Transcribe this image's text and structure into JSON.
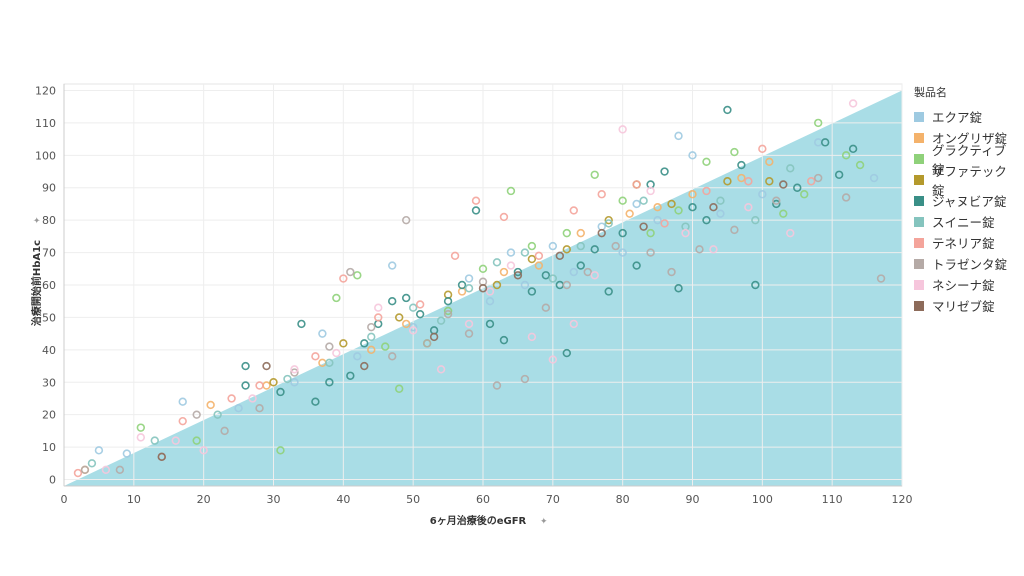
{
  "chart_data": {
    "type": "scatter",
    "xlabel": "6ヶ月治療後のeGFR",
    "ylabel": "治療開始前HbA1c",
    "xlim": [
      0,
      120
    ],
    "ylim": [
      -2,
      122
    ],
    "xticks": [
      0,
      10,
      20,
      30,
      40,
      50,
      60,
      70,
      80,
      90,
      100,
      110,
      120
    ],
    "yticks": [
      0,
      10,
      20,
      30,
      40,
      50,
      60,
      70,
      80,
      90,
      100,
      110,
      120
    ],
    "grid": true,
    "marker": "hollow-circle",
    "legend_title": "製品名",
    "legend_position": "right",
    "shaded_region": {
      "color": "#a9dde6",
      "vertices": [
        [
          0,
          -2
        ],
        [
          120,
          120
        ],
        [
          120,
          -2
        ]
      ]
    },
    "series": [
      {
        "name": "エクア錠",
        "color": "#9ecae1",
        "points": [
          [
            5,
            9
          ],
          [
            9,
            8
          ],
          [
            17,
            24
          ],
          [
            25,
            22
          ],
          [
            33,
            30
          ],
          [
            37,
            45
          ],
          [
            42,
            38
          ],
          [
            47,
            66
          ],
          [
            50,
            47
          ],
          [
            55,
            52
          ],
          [
            58,
            62
          ],
          [
            61,
            55
          ],
          [
            64,
            70
          ],
          [
            66,
            60
          ],
          [
            70,
            72
          ],
          [
            73,
            64
          ],
          [
            77,
            78
          ],
          [
            80,
            70
          ],
          [
            82,
            85
          ],
          [
            85,
            80
          ],
          [
            88,
            106
          ],
          [
            90,
            100
          ],
          [
            94,
            82
          ],
          [
            100,
            88
          ],
          [
            108,
            104
          ],
          [
            116,
            93
          ]
        ]
      },
      {
        "name": "オングリザ錠",
        "color": "#f4b26b",
        "points": [
          [
            3,
            3
          ],
          [
            21,
            23
          ],
          [
            29,
            29
          ],
          [
            37,
            36
          ],
          [
            44,
            40
          ],
          [
            49,
            48
          ],
          [
            57,
            58
          ],
          [
            63,
            64
          ],
          [
            68,
            66
          ],
          [
            74,
            76
          ],
          [
            81,
            82
          ],
          [
            85,
            84
          ],
          [
            90,
            88
          ],
          [
            97,
            93
          ],
          [
            101,
            98
          ]
        ]
      },
      {
        "name": "グラクティブ錠",
        "color": "#8fd17a",
        "points": [
          [
            11,
            16
          ],
          [
            19,
            12
          ],
          [
            31,
            9
          ],
          [
            39,
            56
          ],
          [
            42,
            63
          ],
          [
            46,
            41
          ],
          [
            48,
            28
          ],
          [
            52,
            42
          ],
          [
            55,
            52
          ],
          [
            60,
            65
          ],
          [
            64,
            89
          ],
          [
            67,
            72
          ],
          [
            72,
            76
          ],
          [
            76,
            94
          ],
          [
            80,
            86
          ],
          [
            84,
            76
          ],
          [
            88,
            83
          ],
          [
            92,
            98
          ],
          [
            96,
            101
          ],
          [
            103,
            82
          ],
          [
            106,
            88
          ],
          [
            108,
            110
          ],
          [
            112,
            100
          ],
          [
            114,
            97
          ]
        ]
      },
      {
        "name": "ザファテック錠",
        "color": "#b4992c",
        "points": [
          [
            30,
            30
          ],
          [
            40,
            42
          ],
          [
            48,
            50
          ],
          [
            55,
            57
          ],
          [
            62,
            60
          ],
          [
            67,
            68
          ],
          [
            72,
            71
          ],
          [
            78,
            80
          ],
          [
            82,
            91
          ],
          [
            87,
            85
          ],
          [
            95,
            92
          ],
          [
            101,
            92
          ]
        ]
      },
      {
        "name": "ジャヌビア錠",
        "color": "#3a8f87",
        "points": [
          [
            26,
            35
          ],
          [
            26,
            29
          ],
          [
            31,
            27
          ],
          [
            34,
            48
          ],
          [
            36,
            24
          ],
          [
            38,
            30
          ],
          [
            41,
            32
          ],
          [
            43,
            42
          ],
          [
            45,
            48
          ],
          [
            47,
            55
          ],
          [
            49,
            56
          ],
          [
            51,
            51
          ],
          [
            53,
            46
          ],
          [
            55,
            55
          ],
          [
            57,
            60
          ],
          [
            59,
            83
          ],
          [
            61,
            48
          ],
          [
            63,
            43
          ],
          [
            65,
            64
          ],
          [
            67,
            58
          ],
          [
            69,
            63
          ],
          [
            71,
            60
          ],
          [
            72,
            39
          ],
          [
            74,
            66
          ],
          [
            76,
            71
          ],
          [
            78,
            58
          ],
          [
            80,
            76
          ],
          [
            82,
            66
          ],
          [
            84,
            91
          ],
          [
            86,
            95
          ],
          [
            88,
            59
          ],
          [
            90,
            84
          ],
          [
            92,
            80
          ],
          [
            95,
            114
          ],
          [
            97,
            97
          ],
          [
            99,
            60
          ],
          [
            102,
            85
          ],
          [
            105,
            90
          ],
          [
            109,
            104
          ],
          [
            111,
            94
          ],
          [
            113,
            102
          ]
        ]
      },
      {
        "name": "スイニー錠",
        "color": "#85c4be",
        "points": [
          [
            4,
            5
          ],
          [
            13,
            12
          ],
          [
            22,
            20
          ],
          [
            32,
            31
          ],
          [
            38,
            36
          ],
          [
            44,
            44
          ],
          [
            50,
            53
          ],
          [
            54,
            49
          ],
          [
            58,
            59
          ],
          [
            62,
            67
          ],
          [
            66,
            70
          ],
          [
            70,
            62
          ],
          [
            74,
            72
          ],
          [
            78,
            79
          ],
          [
            83,
            86
          ],
          [
            89,
            78
          ],
          [
            94,
            86
          ],
          [
            99,
            80
          ],
          [
            104,
            96
          ]
        ]
      },
      {
        "name": "テネリア錠",
        "color": "#f4a49b",
        "points": [
          [
            2,
            2
          ],
          [
            17,
            18
          ],
          [
            24,
            25
          ],
          [
            28,
            29
          ],
          [
            36,
            38
          ],
          [
            40,
            62
          ],
          [
            45,
            50
          ],
          [
            51,
            54
          ],
          [
            56,
            69
          ],
          [
            59,
            86
          ],
          [
            63,
            81
          ],
          [
            68,
            69
          ],
          [
            73,
            83
          ],
          [
            77,
            88
          ],
          [
            82,
            91
          ],
          [
            86,
            79
          ],
          [
            92,
            89
          ],
          [
            98,
            92
          ],
          [
            100,
            102
          ],
          [
            107,
            92
          ]
        ]
      },
      {
        "name": "トラゼンタ錠",
        "color": "#b5aaa6",
        "points": [
          [
            3,
            3
          ],
          [
            8,
            3
          ],
          [
            14,
            7
          ],
          [
            19,
            20
          ],
          [
            23,
            15
          ],
          [
            28,
            22
          ],
          [
            33,
            33
          ],
          [
            38,
            41
          ],
          [
            41,
            64
          ],
          [
            44,
            47
          ],
          [
            47,
            38
          ],
          [
            49,
            80
          ],
          [
            52,
            42
          ],
          [
            55,
            51
          ],
          [
            58,
            45
          ],
          [
            60,
            61
          ],
          [
            62,
            29
          ],
          [
            66,
            31
          ],
          [
            69,
            53
          ],
          [
            72,
            60
          ],
          [
            75,
            64
          ],
          [
            79,
            72
          ],
          [
            84,
            70
          ],
          [
            87,
            64
          ],
          [
            91,
            71
          ],
          [
            96,
            77
          ],
          [
            102,
            86
          ],
          [
            108,
            93
          ],
          [
            112,
            87
          ],
          [
            117,
            62
          ]
        ]
      },
      {
        "name": "ネシーナ錠",
        "color": "#f6c6dc",
        "points": [
          [
            6,
            3
          ],
          [
            11,
            13
          ],
          [
            16,
            12
          ],
          [
            20,
            9
          ],
          [
            27,
            25
          ],
          [
            33,
            34
          ],
          [
            39,
            39
          ],
          [
            45,
            53
          ],
          [
            50,
            46
          ],
          [
            54,
            34
          ],
          [
            58,
            48
          ],
          [
            61,
            58
          ],
          [
            64,
            66
          ],
          [
            67,
            44
          ],
          [
            70,
            37
          ],
          [
            73,
            48
          ],
          [
            76,
            63
          ],
          [
            80,
            108
          ],
          [
            84,
            89
          ],
          [
            89,
            76
          ],
          [
            93,
            71
          ],
          [
            98,
            84
          ],
          [
            104,
            76
          ],
          [
            113,
            116
          ]
        ]
      },
      {
        "name": "マリゼブ錠",
        "color": "#8d6b5a",
        "points": [
          [
            14,
            7
          ],
          [
            29,
            35
          ],
          [
            43,
            35
          ],
          [
            53,
            44
          ],
          [
            60,
            59
          ],
          [
            65,
            63
          ],
          [
            71,
            69
          ],
          [
            77,
            76
          ],
          [
            83,
            78
          ],
          [
            93,
            84
          ],
          [
            103,
            91
          ]
        ]
      }
    ]
  }
}
